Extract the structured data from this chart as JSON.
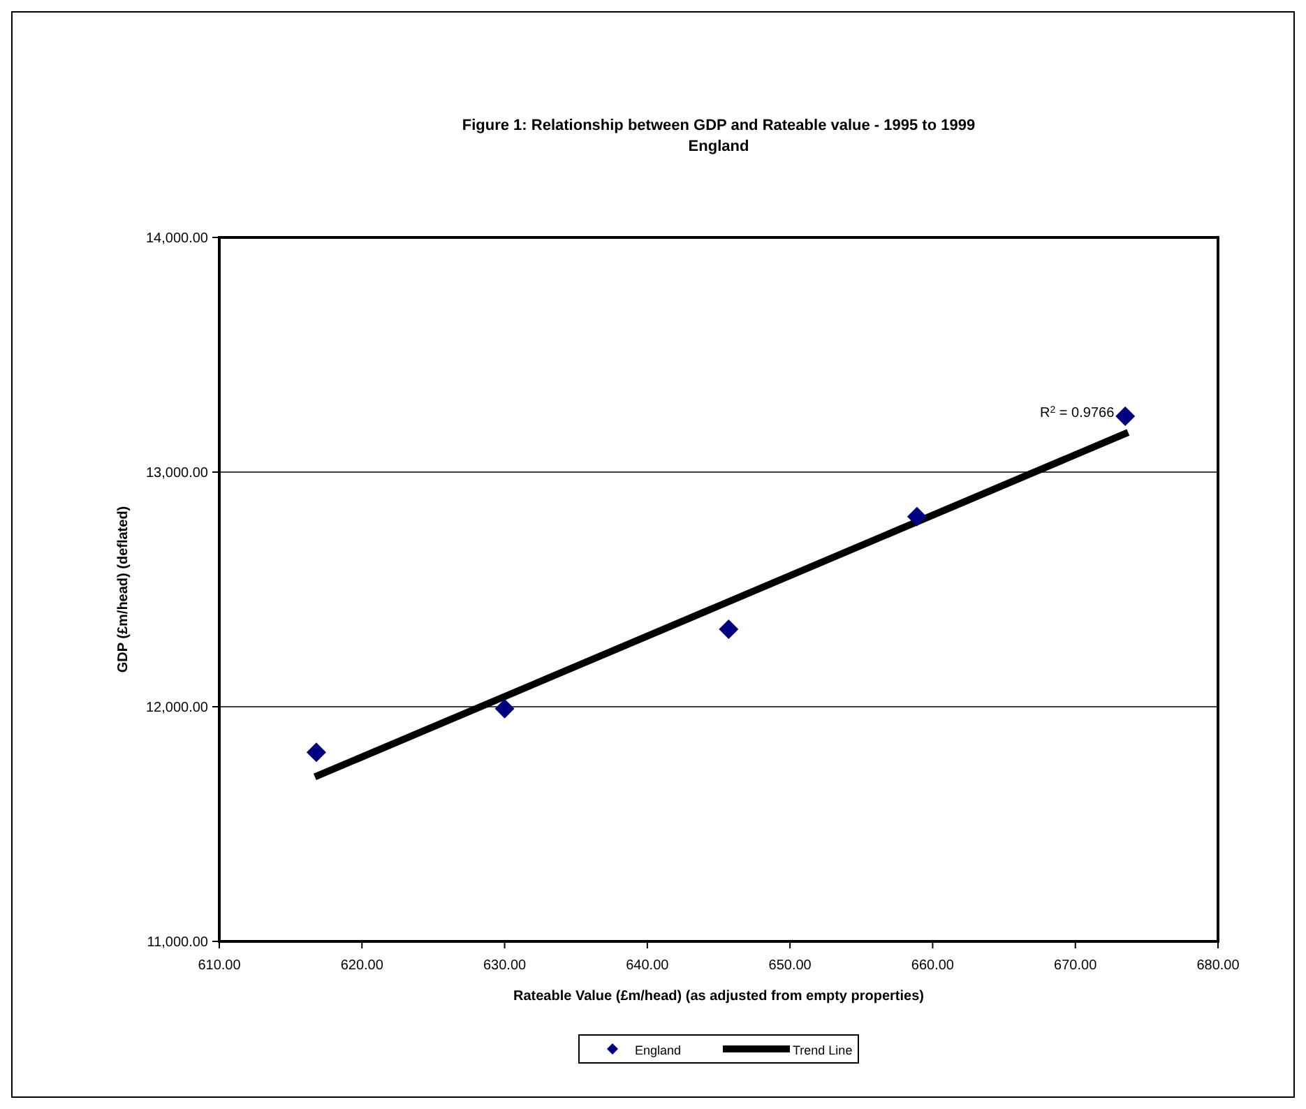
{
  "chart_data": {
    "type": "scatter",
    "title": "Figure 1: Relationship between GDP and Rateable value - 1995 to 1999",
    "subtitle": "England",
    "xlabel": "Rateable Value (£m/head) (as adjusted from empty properties)",
    "ylabel": "GDP (£m/head) (deflated)",
    "xlim": [
      610,
      680
    ],
    "xticks": [
      {
        "value": 610,
        "label": "610.00"
      },
      {
        "value": 620,
        "label": "620.00"
      },
      {
        "value": 630,
        "label": "630.00"
      },
      {
        "value": 640,
        "label": "640.00"
      },
      {
        "value": 650,
        "label": "650.00"
      },
      {
        "value": 660,
        "label": "660.00"
      },
      {
        "value": 670,
        "label": "670.00"
      },
      {
        "value": 680,
        "label": "680.00"
      }
    ],
    "ylim": [
      11000,
      14000
    ],
    "yticks": [
      {
        "value": 11000,
        "label": "11,000.00"
      },
      {
        "value": 12000,
        "label": "12,000.00"
      },
      {
        "value": 13000,
        "label": "13,000.00"
      },
      {
        "value": 14000,
        "label": "14,000.00"
      }
    ],
    "grid": "y",
    "legend": "bottom",
    "marker": "diamond",
    "series": [
      {
        "name": "England",
        "color": "#000080",
        "x": [
          616.8,
          630.0,
          645.7,
          658.9,
          673.5
        ],
        "values": [
          11806,
          11992,
          12330,
          12810,
          13238
        ]
      },
      {
        "name": "Trend Line",
        "type": "line",
        "color": "#000000",
        "marker": "none",
        "x": [
          616.7,
          673.7
        ],
        "values": [
          11701,
          13169
        ]
      }
    ],
    "annotations": [
      {
        "text": "R$^{2}$ = 0.9766",
        "x": 673.7,
        "y": 13169
      }
    ]
  }
}
